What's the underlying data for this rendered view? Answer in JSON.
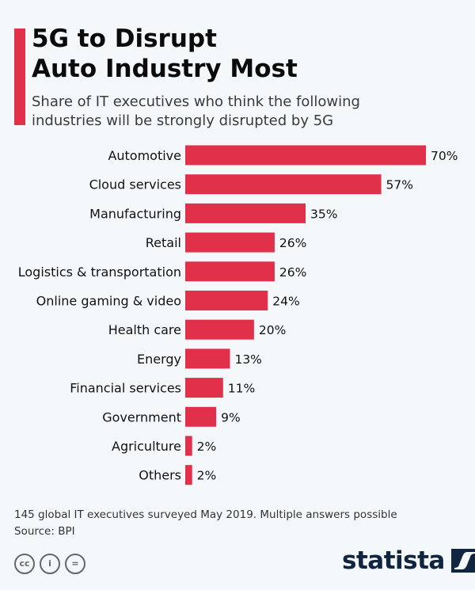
{
  "title_line1": "5G to Disrupt",
  "title_line2": "Auto Industry Most",
  "subtitle_line1": "Share of IT executives who think the following",
  "subtitle_line2": "industries will be strongly disrupted by 5G",
  "footnote": "145 global IT executives surveyed May 2019. Multiple answers possible",
  "source": "Source: BPI",
  "license_icons": [
    "cc-icon",
    "attribution-icon",
    "no-derivatives-icon"
  ],
  "brand": "statista",
  "colors": {
    "bar": "#e0304a",
    "brand": "#0f2540"
  },
  "chart_data": {
    "type": "bar",
    "orientation": "horizontal",
    "title": "5G to Disrupt Auto Industry Most",
    "categories": [
      "Automotive",
      "Cloud services",
      "Manufacturing",
      "Retail",
      "Logistics & transportation",
      "Online gaming & video",
      "Health care",
      "Energy",
      "Financial services",
      "Government",
      "Agriculture",
      "Others"
    ],
    "values": [
      70,
      57,
      35,
      26,
      26,
      24,
      20,
      13,
      11,
      9,
      2,
      2
    ],
    "labels": [
      "70%",
      "57%",
      "35%",
      "26%",
      "26%",
      "24%",
      "20%",
      "13%",
      "11%",
      "9%",
      "2%",
      "2%"
    ],
    "xlabel": "",
    "ylabel": "",
    "xlim": [
      0,
      70
    ],
    "grid": false
  }
}
